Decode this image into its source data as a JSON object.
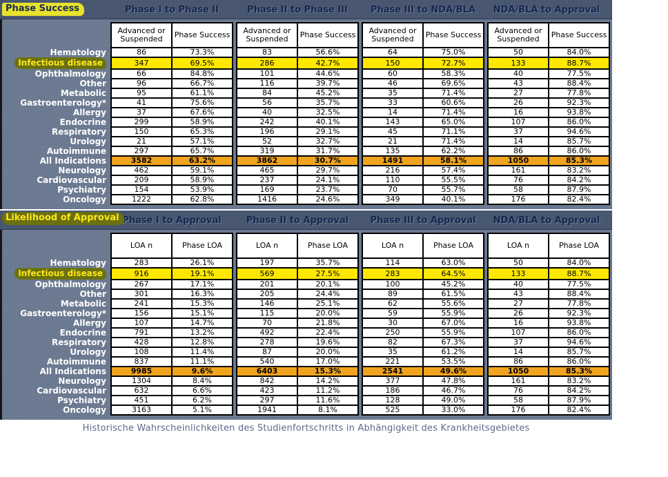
{
  "caption": "Historische Wahrscheinlichkeiten des Studienfortschritts in Abhängigkeit des Krankheitsgebietes",
  "colors": {
    "header_band": "#475670",
    "panel_body": "#6b7a92",
    "group_title_navy": "#17264e",
    "row_label_white": "#ffffff",
    "highlight_yellow": "#ffe800",
    "emphasis_orange": "#f0a41e",
    "section_tag_yellow_bg": "#e7e22c",
    "section_tag_olive_bg": "#6b7110",
    "section_tag_yellow_text": "#ffe818",
    "caption_gray": "#5d6b89"
  },
  "chart_data": [
    {
      "type": "table",
      "title": "Phase Success",
      "column_groups": [
        "Phase I to Phase II",
        "Phase II to Phase III",
        "Phase III to NDA/BLA",
        "NDA/BLA to Approval"
      ],
      "subcolumns": [
        "Advanced or Suspended",
        "Phase Success"
      ],
      "highlight_row_index": 1,
      "emphasis_row_index": 11,
      "rows": [
        {
          "label": "Hematology",
          "cells": [
            [
              "86",
              "73.3%"
            ],
            [
              "83",
              "56.6%"
            ],
            [
              "64",
              "75.0%"
            ],
            [
              "50",
              "84.0%"
            ]
          ]
        },
        {
          "label": "Infectious disease",
          "cells": [
            [
              "347",
              "69.5%"
            ],
            [
              "286",
              "42.7%"
            ],
            [
              "150",
              "72.7%"
            ],
            [
              "133",
              "88.7%"
            ]
          ]
        },
        {
          "label": "Ophthalmology",
          "cells": [
            [
              "66",
              "84.8%"
            ],
            [
              "101",
              "44.6%"
            ],
            [
              "60",
              "58.3%"
            ],
            [
              "40",
              "77.5%"
            ]
          ]
        },
        {
          "label": "Other",
          "cells": [
            [
              "96",
              "66.7%"
            ],
            [
              "116",
              "39.7%"
            ],
            [
              "46",
              "69.6%"
            ],
            [
              "43",
              "88.4%"
            ]
          ]
        },
        {
          "label": "Metabolic",
          "cells": [
            [
              "95",
              "61.1%"
            ],
            [
              "84",
              "45.2%"
            ],
            [
              "35",
              "71.4%"
            ],
            [
              "27",
              "77.8%"
            ]
          ]
        },
        {
          "label": "Gastroenterology*",
          "cells": [
            [
              "41",
              "75.6%"
            ],
            [
              "56",
              "35.7%"
            ],
            [
              "33",
              "60.6%"
            ],
            [
              "26",
              "92.3%"
            ]
          ]
        },
        {
          "label": "Allergy",
          "cells": [
            [
              "37",
              "67.6%"
            ],
            [
              "40",
              "32.5%"
            ],
            [
              "14",
              "71.4%"
            ],
            [
              "16",
              "93.8%"
            ]
          ]
        },
        {
          "label": "Endocrine",
          "cells": [
            [
              "299",
              "58.9%"
            ],
            [
              "242",
              "40.1%"
            ],
            [
              "143",
              "65.0%"
            ],
            [
              "107",
              "86.0%"
            ]
          ]
        },
        {
          "label": "Respiratory",
          "cells": [
            [
              "150",
              "65.3%"
            ],
            [
              "196",
              "29.1%"
            ],
            [
              "45",
              "71.1%"
            ],
            [
              "37",
              "94.6%"
            ]
          ]
        },
        {
          "label": "Urology",
          "cells": [
            [
              "21",
              "57.1%"
            ],
            [
              "52",
              "32.7%"
            ],
            [
              "21",
              "71.4%"
            ],
            [
              "14",
              "85.7%"
            ]
          ]
        },
        {
          "label": "Autoimmune",
          "cells": [
            [
              "297",
              "65.7%"
            ],
            [
              "319",
              "31.7%"
            ],
            [
              "135",
              "62.2%"
            ],
            [
              "86",
              "86.0%"
            ]
          ]
        },
        {
          "label": "All Indications",
          "cells": [
            [
              "3582",
              "63.2%"
            ],
            [
              "3862",
              "30.7%"
            ],
            [
              "1491",
              "58.1%"
            ],
            [
              "1050",
              "85.3%"
            ]
          ]
        },
        {
          "label": "Neurology",
          "cells": [
            [
              "462",
              "59.1%"
            ],
            [
              "465",
              "29.7%"
            ],
            [
              "216",
              "57.4%"
            ],
            [
              "161",
              "83.2%"
            ]
          ]
        },
        {
          "label": "Cardiovascular",
          "cells": [
            [
              "209",
              "58.9%"
            ],
            [
              "237",
              "24.1%"
            ],
            [
              "110",
              "55.5%"
            ],
            [
              "76",
              "84.2%"
            ]
          ]
        },
        {
          "label": "Psychiatry",
          "cells": [
            [
              "154",
              "53.9%"
            ],
            [
              "169",
              "23.7%"
            ],
            [
              "70",
              "55.7%"
            ],
            [
              "58",
              "87.9%"
            ]
          ]
        },
        {
          "label": "Oncology",
          "cells": [
            [
              "1222",
              "62.8%"
            ],
            [
              "1416",
              "24.6%"
            ],
            [
              "349",
              "40.1%"
            ],
            [
              "176",
              "82.4%"
            ]
          ]
        }
      ]
    },
    {
      "type": "table",
      "title": "Likelihood of Approval",
      "column_groups": [
        "Phase I to Approval",
        "Phase II to Approval",
        "Phase III to Approval",
        "NDA/BLA to Approval"
      ],
      "subcolumns": [
        "LOA n",
        "Phase LOA"
      ],
      "highlight_row_index": 1,
      "emphasis_row_index": 11,
      "rows": [
        {
          "label": "Hematology",
          "cells": [
            [
              "283",
              "26.1%"
            ],
            [
              "197",
              "35.7%"
            ],
            [
              "114",
              "63.0%"
            ],
            [
              "50",
              "84.0%"
            ]
          ]
        },
        {
          "label": "Infectious disease",
          "cells": [
            [
              "916",
              "19.1%"
            ],
            [
              "569",
              "27.5%"
            ],
            [
              "283",
              "64.5%"
            ],
            [
              "133",
              "88.7%"
            ]
          ]
        },
        {
          "label": "Ophthalmology",
          "cells": [
            [
              "267",
              "17.1%"
            ],
            [
              "201",
              "20.1%"
            ],
            [
              "100",
              "45.2%"
            ],
            [
              "40",
              "77.5%"
            ]
          ]
        },
        {
          "label": "Other",
          "cells": [
            [
              "301",
              "16.3%"
            ],
            [
              "205",
              "24.4%"
            ],
            [
              "89",
              "61.5%"
            ],
            [
              "43",
              "88.4%"
            ]
          ]
        },
        {
          "label": "Metabolic",
          "cells": [
            [
              "241",
              "15.3%"
            ],
            [
              "146",
              "25.1%"
            ],
            [
              "62",
              "55.6%"
            ],
            [
              "27",
              "77.8%"
            ]
          ]
        },
        {
          "label": "Gastroenterology*",
          "cells": [
            [
              "156",
              "15.1%"
            ],
            [
              "115",
              "20.0%"
            ],
            [
              "59",
              "55.9%"
            ],
            [
              "26",
              "92.3%"
            ]
          ]
        },
        {
          "label": "Allergy",
          "cells": [
            [
              "107",
              "14.7%"
            ],
            [
              "70",
              "21.8%"
            ],
            [
              "30",
              "67.0%"
            ],
            [
              "16",
              "93.8%"
            ]
          ]
        },
        {
          "label": "Endocrine",
          "cells": [
            [
              "791",
              "13.2%"
            ],
            [
              "492",
              "22.4%"
            ],
            [
              "250",
              "55.9%"
            ],
            [
              "107",
              "86.0%"
            ]
          ]
        },
        {
          "label": "Respiratory",
          "cells": [
            [
              "428",
              "12.8%"
            ],
            [
              "278",
              "19.6%"
            ],
            [
              "82",
              "67.3%"
            ],
            [
              "37",
              "94.6%"
            ]
          ]
        },
        {
          "label": "Urology",
          "cells": [
            [
              "108",
              "11.4%"
            ],
            [
              "87",
              "20.0%"
            ],
            [
              "35",
              "61.2%"
            ],
            [
              "14",
              "85.7%"
            ]
          ]
        },
        {
          "label": "Autoimmune",
          "cells": [
            [
              "837",
              "11.1%"
            ],
            [
              "540",
              "17.0%"
            ],
            [
              "221",
              "53.5%"
            ],
            [
              "86",
              "86.0%"
            ]
          ]
        },
        {
          "label": "All Indications",
          "cells": [
            [
              "9985",
              "9.6%"
            ],
            [
              "6403",
              "15.3%"
            ],
            [
              "2541",
              "49.6%"
            ],
            [
              "1050",
              "85.3%"
            ]
          ]
        },
        {
          "label": "Neurology",
          "cells": [
            [
              "1304",
              "8.4%"
            ],
            [
              "842",
              "14.2%"
            ],
            [
              "377",
              "47.8%"
            ],
            [
              "161",
              "83.2%"
            ]
          ]
        },
        {
          "label": "Cardiovascular",
          "cells": [
            [
              "632",
              "6.6%"
            ],
            [
              "423",
              "11.2%"
            ],
            [
              "186",
              "46.7%"
            ],
            [
              "76",
              "84.2%"
            ]
          ]
        },
        {
          "label": "Psychiatry",
          "cells": [
            [
              "451",
              "6.2%"
            ],
            [
              "297",
              "11.6%"
            ],
            [
              "128",
              "49.0%"
            ],
            [
              "58",
              "87.9%"
            ]
          ]
        },
        {
          "label": "Oncology",
          "cells": [
            [
              "3163",
              "5.1%"
            ],
            [
              "1941",
              "8.1%"
            ],
            [
              "525",
              "33.0%"
            ],
            [
              "176",
              "82.4%"
            ]
          ]
        }
      ]
    }
  ]
}
